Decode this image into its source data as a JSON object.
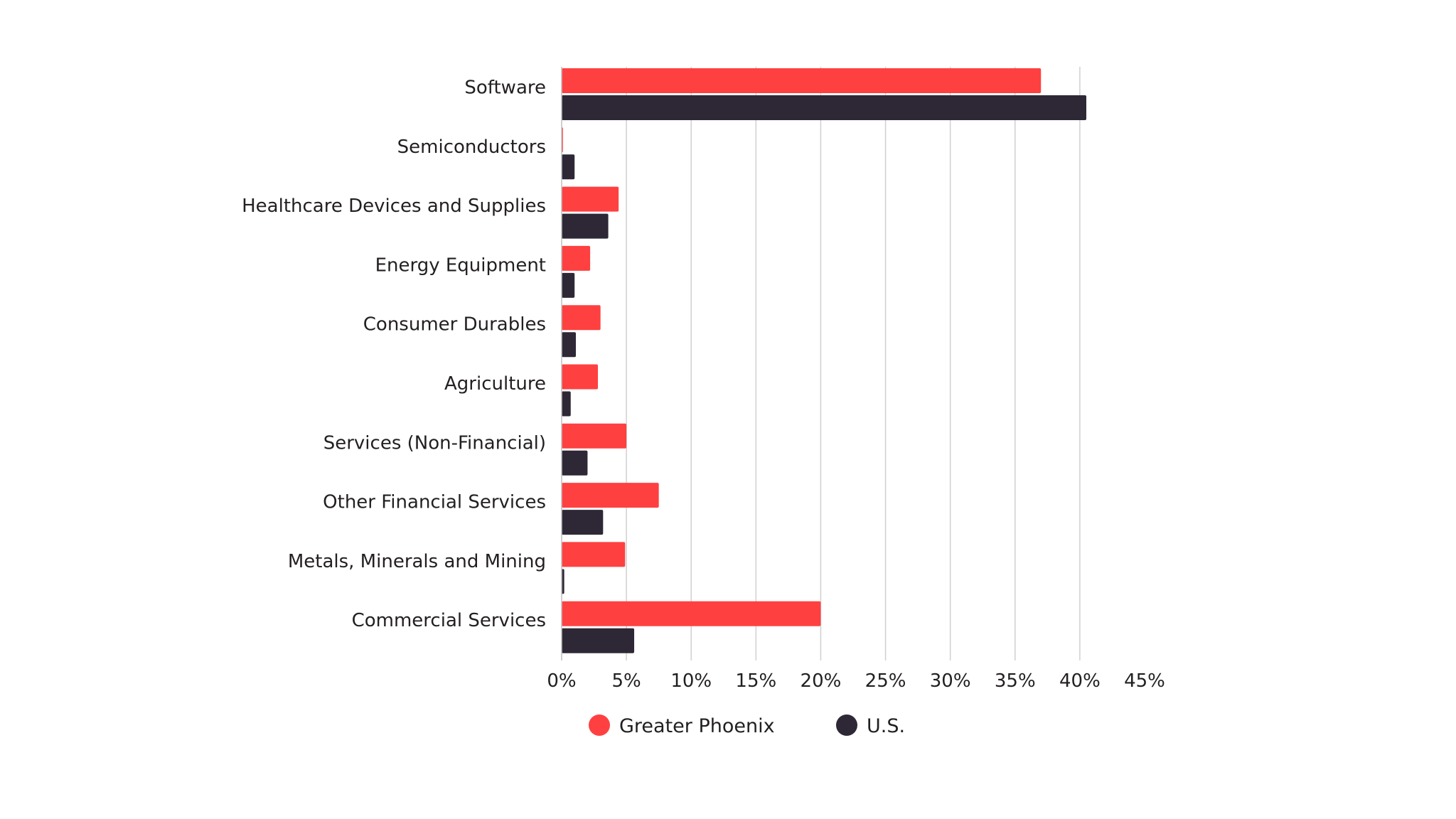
{
  "chart_data": {
    "type": "bar",
    "orientation": "horizontal",
    "categories": [
      "Software",
      "Semiconductors",
      "Healthcare Devices and Supplies",
      "Energy Equipment",
      "Consumer Durables",
      "Agriculture",
      "Services (Non-Financial)",
      "Other Financial Services",
      "Metals, Minerals and Mining",
      "Commercial Services"
    ],
    "series": [
      {
        "name": "Greater Phoenix",
        "color": "#ff4040",
        "values": [
          37.0,
          0.1,
          4.4,
          2.2,
          3.0,
          2.8,
          5.0,
          7.5,
          4.9,
          20.0
        ]
      },
      {
        "name": "U.S.",
        "color": "#2e2836",
        "values": [
          40.5,
          1.0,
          3.6,
          1.0,
          1.1,
          0.7,
          2.0,
          3.2,
          0.2,
          5.6
        ]
      }
    ],
    "xlim": [
      0,
      45
    ],
    "xticks": [
      0,
      5,
      10,
      15,
      20,
      25,
      30,
      35,
      40,
      45
    ],
    "xtick_labels": [
      "0%",
      "5%",
      "10%",
      "15%",
      "20%",
      "25%",
      "30%",
      "35%",
      "40%",
      "45%"
    ],
    "grid": true,
    "legend_position": "bottom",
    "title": "",
    "xlabel": "",
    "ylabel": ""
  }
}
